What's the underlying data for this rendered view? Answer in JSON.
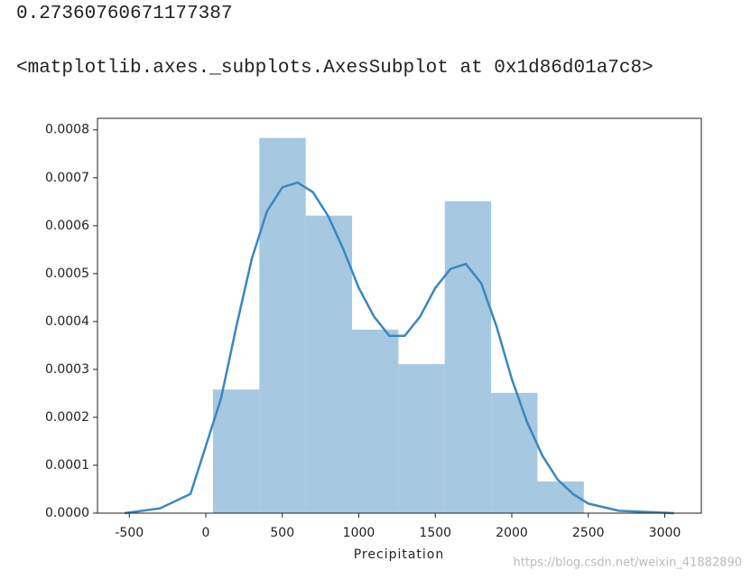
{
  "output_value": "0.27360760671177387",
  "output_repr": "<matplotlib.axes._subplots.AxesSubplot at 0x1d86d01a7c8>",
  "watermark": "https://blog.csdn.net/weixin_41882890",
  "chart_data": {
    "type": "histogram",
    "x_label": "Precipitation",
    "bins": [
      47,
      350,
      653,
      956,
      1259,
      1562,
      1865,
      2168,
      2471
    ],
    "counts": [
      0.000258,
      0.000783,
      0.000621,
      0.000383,
      0.000311,
      0.000651,
      0.000251,
      6.6e-05
    ],
    "color": "#a6c8e0",
    "kde": {
      "color": "#3a87c0",
      "x": [
        -530,
        -300,
        -100,
        0,
        100,
        200,
        300,
        400,
        500,
        600,
        700,
        800,
        900,
        1000,
        1100,
        1200,
        1300,
        1400,
        1500,
        1600,
        1700,
        1800,
        1900,
        2000,
        2100,
        2200,
        2300,
        2400,
        2500,
        2700,
        3060
      ],
      "y": [
        0,
        1e-05,
        4e-05,
        0.00014,
        0.00024,
        0.00039,
        0.00053,
        0.00063,
        0.00068,
        0.00069,
        0.00067,
        0.00062,
        0.00055,
        0.00047,
        0.00041,
        0.00037,
        0.00037,
        0.00041,
        0.00047,
        0.00051,
        0.00052,
        0.00048,
        0.00039,
        0.00028,
        0.00019,
        0.00012,
        7e-05,
        4e-05,
        2e-05,
        5e-06,
        0
      ]
    },
    "xlim": [
      -708,
      3239
    ],
    "ylim": [
      0,
      0.000824
    ],
    "xticks": [
      -500,
      0,
      500,
      1000,
      1500,
      2000,
      2500,
      3000
    ],
    "yticks": [
      {
        "value": 0,
        "label": "0.0000"
      },
      {
        "value": 0.0001,
        "label": "0.0001"
      },
      {
        "value": 0.0002,
        "label": "0.0002"
      },
      {
        "value": 0.0003,
        "label": "0.0003"
      },
      {
        "value": 0.0004,
        "label": "0.0004"
      },
      {
        "value": 0.0005,
        "label": "0.0005"
      },
      {
        "value": 0.0006,
        "label": "0.0006"
      },
      {
        "value": 0.0007,
        "label": "0.0007"
      },
      {
        "value": 0.0008,
        "label": "0.0008"
      }
    ]
  }
}
